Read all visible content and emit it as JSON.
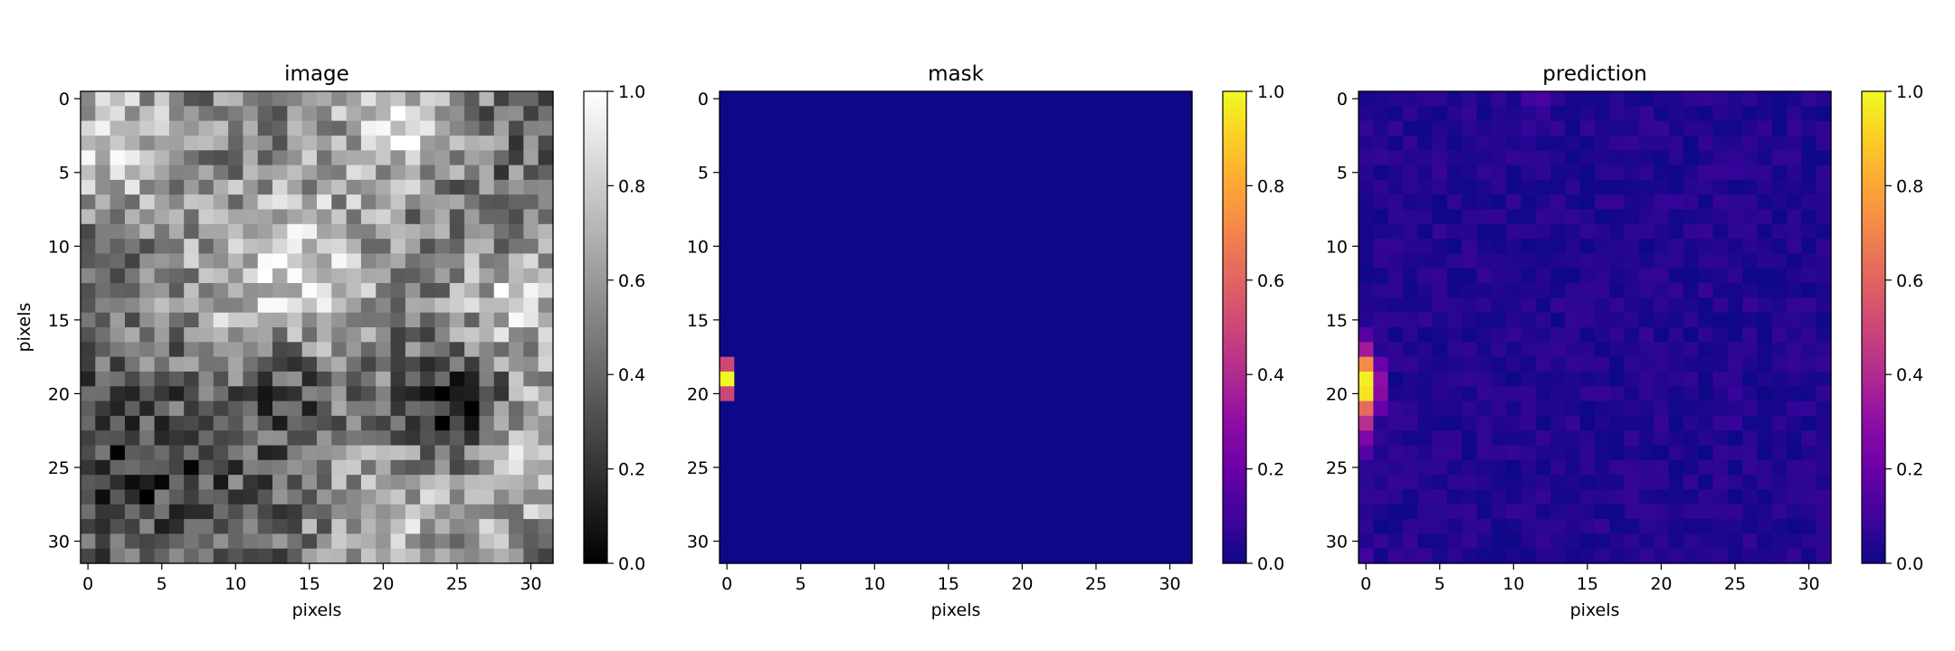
{
  "chart_data": [
    {
      "type": "heatmap",
      "title": "image",
      "xlabel": "pixels",
      "ylabel": "pixels",
      "colormap": "gray",
      "grid_size": 32,
      "xlim": [
        -0.5,
        31.5
      ],
      "ylim": [
        31.5,
        -0.5
      ],
      "xticks": [
        0,
        5,
        10,
        15,
        20,
        25,
        30
      ],
      "yticks": [
        0,
        5,
        10,
        15,
        20,
        25,
        30
      ],
      "xtick_labels": [
        "0",
        "5",
        "10",
        "15",
        "20",
        "25",
        "30"
      ],
      "ytick_labels": [
        "0",
        "5",
        "10",
        "15",
        "20",
        "25",
        "30"
      ],
      "colorbar": {
        "range": [
          0.0,
          1.0
        ],
        "ticks": [
          0.0,
          0.2,
          0.4,
          0.6,
          0.8,
          1.0
        ],
        "tick_labels": [
          "0.0",
          "0.2",
          "0.4",
          "0.6",
          "0.8",
          "1.0"
        ]
      },
      "values_description_note": null,
      "blobs": [
        {
          "x": 2,
          "y": 3,
          "r": 4.0,
          "v": 0.78
        },
        {
          "x": 21,
          "y": 2,
          "r": 3.0,
          "v": 0.88
        },
        {
          "x": 14,
          "y": 10,
          "r": 4.5,
          "v": 0.72
        },
        {
          "x": 13,
          "y": 14,
          "r": 4.0,
          "v": 0.85
        },
        {
          "x": 29,
          "y": 14,
          "r": 3.0,
          "v": 0.8
        },
        {
          "x": 29,
          "y": 24,
          "r": 4.0,
          "v": 0.82
        },
        {
          "x": 21,
          "y": 28,
          "r": 4.0,
          "v": 0.7
        },
        {
          "x": 25,
          "y": 21,
          "r": 2.5,
          "v": 0.12
        },
        {
          "x": 4,
          "y": 25,
          "r": 4.0,
          "v": 0.22
        },
        {
          "x": 13,
          "y": 20,
          "r": 3.0,
          "v": 0.3
        }
      ],
      "base_value": 0.42,
      "noise_amplitude": 0.25
    },
    {
      "type": "heatmap",
      "title": "mask",
      "xlabel": "pixels",
      "ylabel": "",
      "colormap": "plasma",
      "grid_size": 32,
      "xlim": [
        -0.5,
        31.5
      ],
      "ylim": [
        31.5,
        -0.5
      ],
      "xticks": [
        0,
        5,
        10,
        15,
        20,
        25,
        30
      ],
      "yticks": [
        0,
        5,
        10,
        15,
        20,
        25,
        30
      ],
      "xtick_labels": [
        "0",
        "5",
        "10",
        "15",
        "20",
        "25",
        "30"
      ],
      "ytick_labels": [
        "0",
        "5",
        "10",
        "15",
        "20",
        "25",
        "30"
      ],
      "colorbar": {
        "range": [
          0.0,
          1.0
        ],
        "ticks": [
          0.0,
          0.2,
          0.4,
          0.6,
          0.8,
          1.0
        ],
        "tick_labels": [
          "0.0",
          "0.2",
          "0.4",
          "0.6",
          "0.8",
          "1.0"
        ]
      },
      "base_value": 0.0,
      "cells": [
        {
          "x": 0,
          "y": 18,
          "v": 0.5
        },
        {
          "x": 0,
          "y": 19,
          "v": 1.0
        },
        {
          "x": 0,
          "y": 20,
          "v": 0.5
        }
      ]
    },
    {
      "type": "heatmap",
      "title": "prediction",
      "xlabel": "pixels",
      "ylabel": "",
      "colormap": "plasma",
      "grid_size": 32,
      "xlim": [
        -0.5,
        31.5
      ],
      "ylim": [
        31.5,
        -0.5
      ],
      "xticks": [
        0,
        5,
        10,
        15,
        20,
        25,
        30
      ],
      "yticks": [
        0,
        5,
        10,
        15,
        20,
        25,
        30
      ],
      "xtick_labels": [
        "0",
        "5",
        "10",
        "15",
        "20",
        "25",
        "30"
      ],
      "ytick_labels": [
        "0",
        "5",
        "10",
        "15",
        "20",
        "25",
        "30"
      ],
      "colorbar": {
        "range": [
          0.0,
          1.0
        ],
        "ticks": [
          0.0,
          0.2,
          0.4,
          0.6,
          0.8,
          1.0
        ],
        "tick_labels": [
          "0.0",
          "0.2",
          "0.4",
          "0.6",
          "0.8",
          "1.0"
        ]
      },
      "base_value": 0.04,
      "noise_amplitude": 0.04,
      "cells": [
        {
          "x": 0,
          "y": 16,
          "v": 0.15
        },
        {
          "x": 0,
          "y": 17,
          "v": 0.35
        },
        {
          "x": 0,
          "y": 18,
          "v": 0.72
        },
        {
          "x": 0,
          "y": 19,
          "v": 0.98
        },
        {
          "x": 0,
          "y": 20,
          "v": 0.95
        },
        {
          "x": 0,
          "y": 21,
          "v": 0.62
        },
        {
          "x": 0,
          "y": 22,
          "v": 0.42
        },
        {
          "x": 0,
          "y": 23,
          "v": 0.25
        },
        {
          "x": 0,
          "y": 24,
          "v": 0.15
        },
        {
          "x": 1,
          "y": 18,
          "v": 0.2
        },
        {
          "x": 1,
          "y": 19,
          "v": 0.3
        },
        {
          "x": 1,
          "y": 20,
          "v": 0.28
        },
        {
          "x": 1,
          "y": 21,
          "v": 0.18
        },
        {
          "x": 12,
          "y": 0,
          "v": 0.12
        },
        {
          "x": 11,
          "y": 0,
          "v": 0.1
        },
        {
          "x": 0,
          "y": 31,
          "v": 0.1
        }
      ]
    }
  ]
}
